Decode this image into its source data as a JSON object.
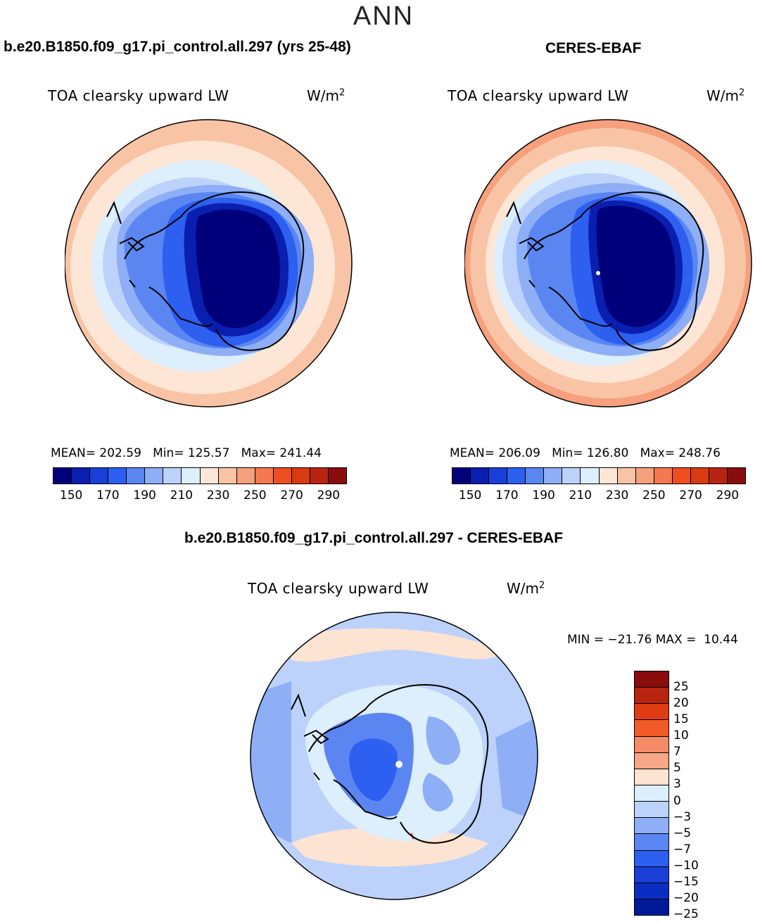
{
  "season": "ANN",
  "panels": [
    {
      "title": "b.e20.B1850.f09_g17.pi_control.all.297 (yrs 25-48)",
      "variable": "TOA clearsky upward LW",
      "units_base": "W/m",
      "units_exp": "2",
      "stats": "MEAN= 202.59   Min= 125.57   Max= 241.44"
    },
    {
      "title": "CERES-EBAF",
      "variable": "TOA clearsky upward LW",
      "units_base": "W/m",
      "units_exp": "2",
      "stats": "MEAN= 206.09   Min= 126.80   Max= 248.76"
    }
  ],
  "diff_panel": {
    "title": "b.e20.B1850.f09_g17.pi_control.all.297 - CERES-EBAF",
    "variable": "TOA clearsky upward LW",
    "units_base": "W/m",
    "units_exp": "2",
    "stats": "MIN = −21.76 MAX =  10.44"
  },
  "colorbar_main": {
    "colors": [
      "#00007a",
      "#0a1fb0",
      "#1a3fd8",
      "#2d5ff0",
      "#5b86f2",
      "#8eaef6",
      "#bcd2fa",
      "#ddeefc",
      "#fde6d6",
      "#f9c4a6",
      "#f6a07d",
      "#f47850",
      "#ef4e20",
      "#d83a12",
      "#b92410",
      "#8a0c0c"
    ],
    "tick_labels": [
      "150",
      "170",
      "190",
      "210",
      "230",
      "250",
      "270",
      "290"
    ]
  },
  "colorbar_diff": {
    "colors": [
      "#8a0c0c",
      "#b92410",
      "#e03c14",
      "#f25a28",
      "#f48a66",
      "#f6a886",
      "#fde3d2",
      "#ddeefc",
      "#bcd2fa",
      "#8eaef6",
      "#5b86f2",
      "#2d5ff0",
      "#1a3fd8",
      "#0a2ec4",
      "#001a9a"
    ],
    "tick_labels": [
      "25",
      "20",
      "15",
      "10",
      "7",
      "5",
      "3",
      "0",
      "−3",
      "−5",
      "−7",
      "−10",
      "−15",
      "−20",
      "−25"
    ]
  }
}
